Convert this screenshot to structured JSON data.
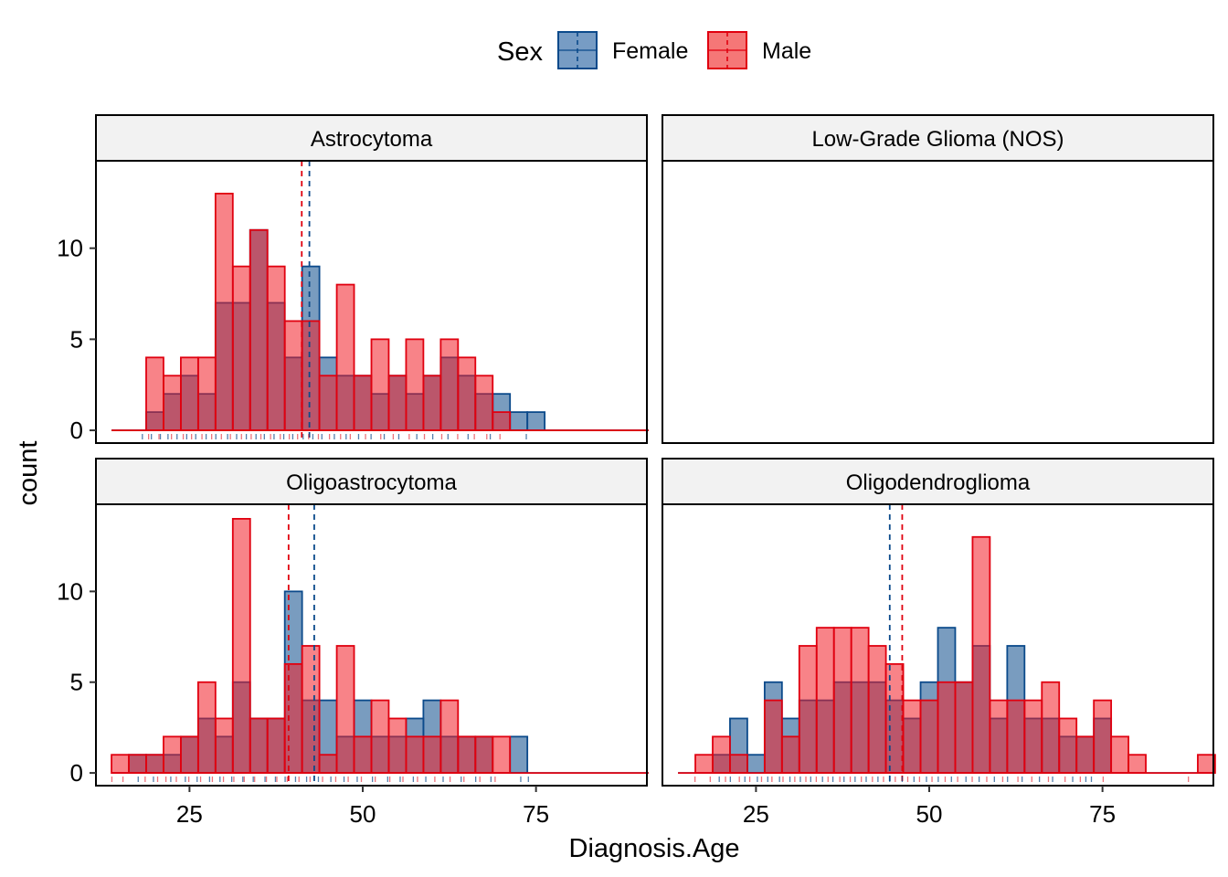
{
  "chart_data": {
    "type": "bar",
    "xlabel": "Diagnosis.Age",
    "ylabel": "count",
    "xlim": [
      11.5,
      91
    ],
    "ylim": [
      -0.7,
      14.8
    ],
    "x_ticks": [
      25,
      50,
      75
    ],
    "y_ticks": [
      0,
      5,
      10
    ],
    "bin_edges": [
      13.75,
      16.25,
      18.75,
      21.25,
      23.75,
      26.25,
      28.75,
      31.25,
      33.75,
      36.25,
      38.75,
      41.25,
      43.75,
      46.25,
      48.75,
      51.25,
      53.75,
      56.25,
      58.75,
      61.25,
      63.75,
      66.25,
      68.75,
      71.25,
      73.75,
      76.25,
      78.75,
      81.25,
      83.75,
      86.25,
      88.75,
      91.25
    ],
    "legend": {
      "title": "Sex",
      "position": "top",
      "entries": [
        {
          "label": "Female",
          "fill": "#4a7bb0",
          "stroke": "#0b4a8b"
        },
        {
          "label": "Male",
          "fill": "#f24a4a",
          "stroke": "#e0000f"
        }
      ]
    },
    "colors": {
      "female_fill": "#0b4a8b",
      "female_line": "#0b4a8b",
      "male_fill": "#f21d26",
      "male_line": "#e0000f",
      "strip_bg": "#f2f2f2"
    },
    "panels": [
      {
        "title": "Astrocytoma",
        "female_counts": [
          0,
          0,
          1,
          2,
          3,
          2,
          7,
          7,
          11,
          7,
          4,
          9,
          4,
          3,
          3,
          2,
          3,
          2,
          3,
          4,
          3,
          2,
          2,
          1,
          1,
          0,
          0,
          0,
          0,
          0,
          0
        ],
        "male_counts": [
          0,
          0,
          4,
          3,
          4,
          4,
          13,
          9,
          11,
          9,
          6,
          6,
          3,
          8,
          3,
          5,
          3,
          5,
          3,
          5,
          4,
          3,
          1,
          0,
          0,
          0,
          0,
          0,
          0,
          0,
          0
        ],
        "female_mean": 42.3,
        "male_mean": 41.2,
        "female_ages": [
          18.2,
          19.5,
          20.8,
          21.9,
          23.2,
          24.6,
          25.9,
          27.4,
          28.8,
          30.5,
          31.8,
          33.2,
          34.6,
          35.8,
          37.2,
          38.6,
          39.9,
          41.4,
          42.8,
          44.1,
          45.9,
          47.6,
          49.4,
          51.2,
          53.1,
          55.2,
          57.8,
          60.1,
          62.3,
          65.2,
          68.4,
          73.6
        ],
        "male_ages": [
          19.1,
          20.6,
          22.4,
          24.1,
          25.3,
          26.8,
          28.2,
          29.6,
          30.9,
          32.5,
          33.9,
          35.3,
          36.7,
          38.1,
          39.4,
          40.6,
          42.2,
          43.6,
          45.2,
          46.8,
          48.2,
          50.4,
          52.6,
          54.4,
          56.7,
          58.9,
          61.4,
          63.7,
          66.1,
          67.9,
          69.8
        ]
      },
      {
        "title": "Low-Grade Glioma (NOS)",
        "female_counts": [],
        "male_counts": [],
        "female_ages": [],
        "male_ages": []
      },
      {
        "title": "Oligoastrocytoma",
        "female_counts": [
          0,
          1,
          1,
          1,
          2,
          3,
          2,
          5,
          3,
          3,
          10,
          4,
          4,
          2,
          4,
          2,
          2,
          3,
          4,
          2,
          2,
          2,
          0,
          2,
          0,
          0,
          0,
          0,
          0,
          0,
          0
        ],
        "male_counts": [
          1,
          1,
          1,
          2,
          2,
          5,
          3,
          14,
          3,
          3,
          6,
          7,
          1,
          7,
          2,
          4,
          3,
          2,
          2,
          4,
          2,
          2,
          2,
          0,
          0,
          0,
          0,
          0,
          0,
          0,
          0
        ],
        "female_mean": 43.0,
        "male_mean": 39.3,
        "female_ages": [
          17.6,
          19.8,
          22.3,
          24.4,
          26.1,
          27.9,
          29.4,
          31.1,
          32.7,
          34.2,
          35.9,
          37.4,
          38.8,
          40.3,
          41.9,
          43.6,
          45.4,
          47.3,
          49.2,
          51.4,
          53.6,
          55.4,
          57.3,
          59.1,
          61.6,
          64.2,
          66.3,
          68.5,
          72.8,
          73.9
        ],
        "male_ages": [
          13.8,
          15.4,
          18.6,
          20.4,
          21.6,
          23.1,
          24.9,
          26.6,
          28.3,
          29.9,
          31.4,
          32.9,
          34.4,
          36.1,
          37.6,
          39.1,
          40.8,
          42.4,
          44.2,
          46.1,
          47.9,
          49.8,
          51.8,
          53.9,
          55.8,
          57.9,
          60.4,
          62.6,
          64.6,
          66.9,
          69.1
        ]
      },
      {
        "title": "Oligodendroglioma",
        "female_counts": [
          0,
          0,
          1,
          3,
          1,
          5,
          3,
          4,
          4,
          5,
          5,
          5,
          4,
          3,
          5,
          8,
          5,
          7,
          3,
          7,
          3,
          3,
          2,
          2,
          3,
          0,
          0,
          0,
          0,
          0,
          0
        ],
        "male_counts": [
          0,
          1,
          2,
          1,
          0,
          4,
          2,
          7,
          8,
          8,
          8,
          7,
          6,
          4,
          4,
          5,
          5,
          13,
          4,
          4,
          4,
          5,
          3,
          2,
          4,
          2,
          1,
          0,
          0,
          0,
          1
        ],
        "female_mean": 44.3,
        "male_mean": 46.1,
        "female_ages": [
          19.7,
          21.3,
          23.4,
          25.2,
          26.7,
          28.4,
          29.9,
          31.4,
          32.9,
          34.6,
          36.1,
          37.7,
          39.3,
          40.9,
          42.6,
          44.3,
          46.1,
          47.8,
          49.6,
          51.3,
          53.2,
          55.3,
          57.2,
          59.4,
          61.3,
          63.4,
          65.9,
          67.8,
          70.7,
          72.6,
          73.4
        ],
        "male_ages": [
          16.2,
          18.4,
          20.6,
          22.6,
          24.1,
          25.8,
          27.3,
          28.9,
          30.6,
          32.2,
          33.7,
          35.4,
          37.1,
          38.6,
          40.2,
          41.8,
          43.4,
          45.1,
          46.9,
          48.6,
          50.4,
          52.3,
          54.1,
          56.2,
          58.3,
          60.6,
          62.8,
          64.8,
          67.2,
          69.6,
          71.8,
          75.1,
          87.4
        ]
      }
    ]
  }
}
